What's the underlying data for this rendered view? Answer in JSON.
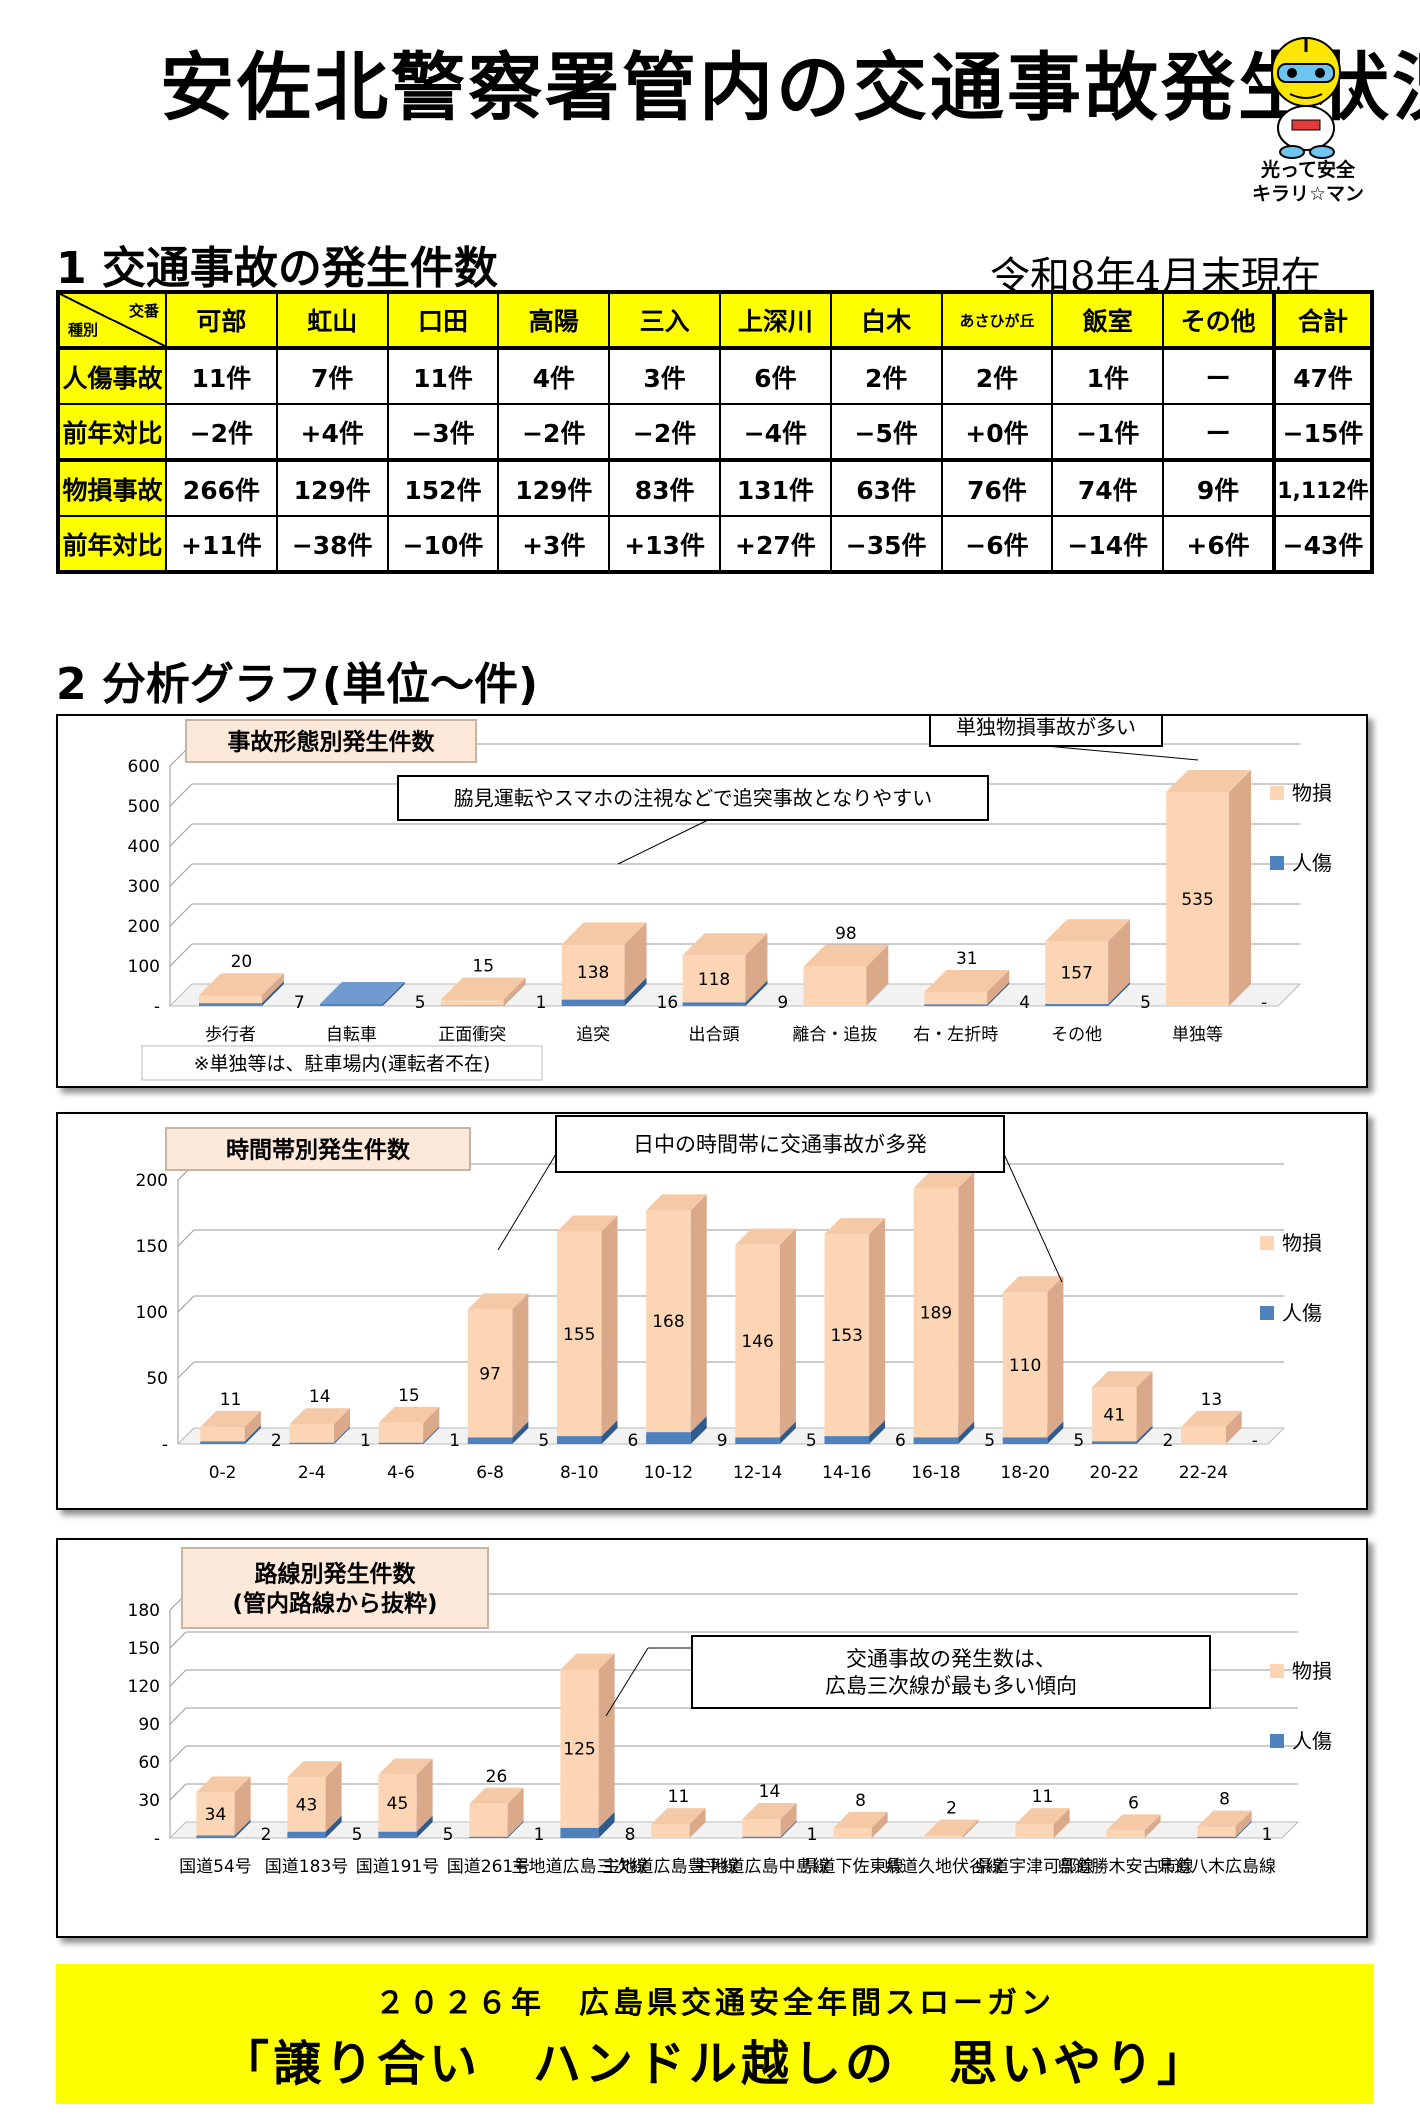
{
  "title": "安佐北警察署管内の交通事故発生状況",
  "mascot_caption": [
    "光って安全",
    "キラリ☆マン"
  ],
  "section1": {
    "title": "1 交通事故の発生件数",
    "as_of": "令和8年4月末現在"
  },
  "table": {
    "corner_top": "交番",
    "corner_bottom": "種別",
    "columns": [
      "可部",
      "虹山",
      "口田",
      "高陽",
      "三入",
      "上深川",
      "白木",
      "あさひが丘",
      "飯室",
      "その他",
      "合計"
    ],
    "rows": [
      {
        "label": "人傷事故",
        "values": [
          "11件",
          "7件",
          "11件",
          "4件",
          "3件",
          "6件",
          "2件",
          "2件",
          "1件",
          "ー",
          "47件"
        ]
      },
      {
        "label": "前年対比",
        "values": [
          "−2件",
          "+4件",
          "−3件",
          "−2件",
          "−2件",
          "−4件",
          "−5件",
          "+0件",
          "−1件",
          "ー",
          "−15件"
        ]
      },
      {
        "label": "物損事故",
        "values": [
          "266件",
          "129件",
          "152件",
          "129件",
          "83件",
          "131件",
          "63件",
          "76件",
          "74件",
          "9件",
          "1,112件"
        ]
      },
      {
        "label": "前年対比",
        "values": [
          "+11件",
          "−38件",
          "−10件",
          "+3件",
          "+13件",
          "+27件",
          "−35件",
          "−6件",
          "−14件",
          "+6件",
          "−43件"
        ]
      }
    ]
  },
  "section2": {
    "title": "2 分析グラフ(単位〜件)"
  },
  "colors": {
    "property": "#fcd5b5",
    "property_side": "#d9a98a",
    "injury": "#4f81bd",
    "injury_side": "#2f5a8c",
    "highlight": "#ffff00"
  },
  "chart_data": [
    {
      "type": "bar",
      "title": "事故形態別発生件数",
      "callout": "単独物損事故が多い",
      "annotation": "脇見運転やスマホの注視などで追突事故となりやすい",
      "note": "※単独等は、駐車場内(運転者不在)",
      "categories": [
        "歩行者",
        "自転車",
        "正面衝突",
        "追突",
        "出合頭",
        "離合・追抜",
        "右・左折時",
        "その他",
        "単独等"
      ],
      "series": [
        {
          "name": "物損",
          "values": [
            20,
            0,
            15,
            138,
            118,
            98,
            31,
            157,
            535
          ],
          "labels": [
            "20",
            "",
            "15",
            "138",
            "118",
            "98",
            "31",
            "157",
            "535"
          ]
        },
        {
          "name": "人傷",
          "values": [
            7,
            5,
            1,
            16,
            9,
            0,
            4,
            5,
            0
          ],
          "labels": [
            "7",
            "5",
            "1",
            "16",
            "9",
            "",
            "4",
            "5",
            "-"
          ]
        }
      ],
      "yticks": [
        "-",
        "100",
        "200",
        "300",
        "400",
        "500",
        "600"
      ],
      "ylim": [
        0,
        600
      ]
    },
    {
      "type": "bar",
      "title": "時間帯別発生件数",
      "annotation": "日中の時間帯に交通事故が多発",
      "categories": [
        "0-2",
        "2-4",
        "4-6",
        "6-8",
        "8-10",
        "10-12",
        "12-14",
        "14-16",
        "16-18",
        "18-20",
        "20-22",
        "22-24"
      ],
      "series": [
        {
          "name": "物損",
          "values": [
            11,
            14,
            15,
            97,
            155,
            168,
            146,
            153,
            189,
            110,
            41,
            13
          ],
          "labels": [
            "11",
            "14",
            "15",
            "97",
            "155",
            "168",
            "146",
            "153",
            "189",
            "110",
            "41",
            "13"
          ]
        },
        {
          "name": "人傷",
          "values": [
            2,
            1,
            1,
            5,
            6,
            9,
            5,
            6,
            5,
            5,
            2,
            0
          ],
          "labels": [
            "2",
            "1",
            "1",
            "5",
            "6",
            "9",
            "5",
            "6",
            "5",
            "5",
            "2",
            "-"
          ]
        }
      ],
      "yticks": [
        "-",
        "50",
        "100",
        "150",
        "200"
      ],
      "ylim": [
        0,
        200
      ]
    },
    {
      "type": "bar",
      "title": [
        "路線別発生件数",
        "(管内路線から抜粋)"
      ],
      "annotation": [
        "交通事故の発生数は、",
        "広島三次線が最も多い傾向"
      ],
      "categories": [
        "国道54号",
        "国道183号",
        "国道191号",
        "国道261号",
        "主地道広島三次線",
        "主地道広島豊平線",
        "主地道広島中島線",
        "県道下佐東線",
        "県道久地伏谷線",
        "県道宇津可部線",
        "県道勝木安古市線",
        "県道八木広島線"
      ],
      "series": [
        {
          "name": "物損",
          "values": [
            34,
            43,
            45,
            26,
            125,
            11,
            14,
            8,
            2,
            11,
            6,
            8
          ],
          "labels": [
            "34",
            "43",
            "45",
            "26",
            "125",
            "11",
            "14",
            "8",
            "2",
            "11",
            "6",
            "8"
          ]
        },
        {
          "name": "人傷",
          "values": [
            2,
            5,
            5,
            1,
            8,
            0,
            1,
            0,
            0,
            0,
            0,
            1
          ],
          "labels": [
            "2",
            "5",
            "5",
            "1",
            "8",
            "",
            "1",
            "",
            "",
            "",
            "",
            "1"
          ]
        }
      ],
      "yticks": [
        "-",
        "30",
        "60",
        "90",
        "120",
        "150",
        "180"
      ],
      "ylim": [
        0,
        180
      ]
    }
  ],
  "slogan": {
    "line1": "２０２６年　広島県交通安全年間スローガン",
    "line2": "「譲り合い　ハンドル越しの　思いやり」"
  }
}
